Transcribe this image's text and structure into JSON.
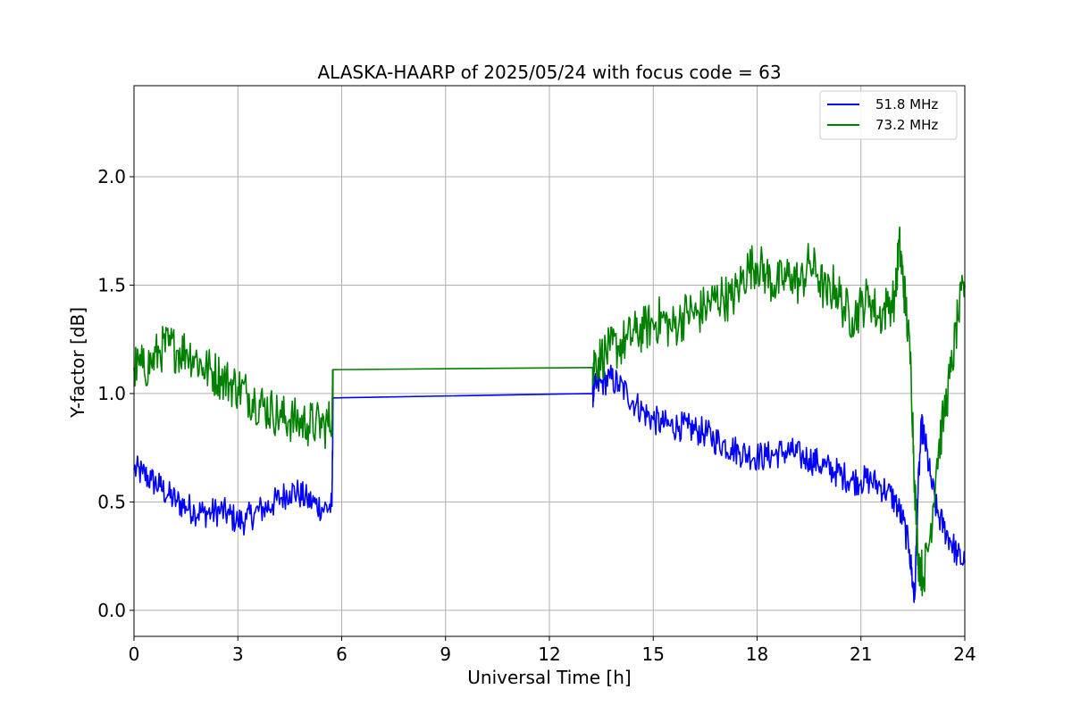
{
  "chart_data": {
    "type": "line",
    "title": "ALASKA-HAARP of 2025/05/24 with focus code = 63",
    "xlabel": "Universal Time [h]",
    "ylabel": "Y-factor [dB]",
    "xlim": [
      0,
      24
    ],
    "ylim": [
      -0.12,
      2.42
    ],
    "xticks": [
      0,
      3,
      6,
      9,
      12,
      15,
      18,
      21,
      24
    ],
    "yticks": [
      0.0,
      0.5,
      1.0,
      1.5,
      2.0
    ],
    "xtick_labels": [
      "0",
      "3",
      "6",
      "9",
      "12",
      "15",
      "18",
      "21",
      "24"
    ],
    "ytick_labels": [
      "0.0",
      "0.5",
      "1.0",
      "1.5",
      "2.0"
    ],
    "grid": true,
    "legend_position": "top-right",
    "series": [
      {
        "name": "51.8 MHz",
        "color": "#0000ff",
        "points": [
          [
            0.0,
            0.65
          ],
          [
            0.25,
            0.63
          ],
          [
            0.5,
            0.6
          ],
          [
            0.75,
            0.57
          ],
          [
            1.0,
            0.53
          ],
          [
            1.25,
            0.5
          ],
          [
            1.5,
            0.48
          ],
          [
            1.75,
            0.46
          ],
          [
            2.0,
            0.45
          ],
          [
            2.25,
            0.45
          ],
          [
            2.5,
            0.46
          ],
          [
            2.75,
            0.44
          ],
          [
            3.0,
            0.41
          ],
          [
            3.25,
            0.42
          ],
          [
            3.5,
            0.45
          ],
          [
            3.75,
            0.47
          ],
          [
            4.0,
            0.49
          ],
          [
            4.25,
            0.52
          ],
          [
            4.5,
            0.55
          ],
          [
            4.75,
            0.54
          ],
          [
            5.0,
            0.51
          ],
          [
            5.25,
            0.49
          ],
          [
            5.5,
            0.47
          ],
          [
            5.72,
            0.48
          ],
          [
            5.75,
            0.98
          ],
          [
            13.25,
            1.0
          ],
          [
            13.3,
            1.02
          ],
          [
            13.5,
            1.05
          ],
          [
            13.75,
            1.07
          ],
          [
            14.0,
            1.04
          ],
          [
            14.25,
            1.0
          ],
          [
            14.5,
            0.95
          ],
          [
            14.75,
            0.91
          ],
          [
            15.0,
            0.88
          ],
          [
            15.25,
            0.86
          ],
          [
            15.5,
            0.85
          ],
          [
            15.75,
            0.85
          ],
          [
            16.0,
            0.84
          ],
          [
            16.25,
            0.83
          ],
          [
            16.5,
            0.82
          ],
          [
            16.75,
            0.79
          ],
          [
            17.0,
            0.77
          ],
          [
            17.25,
            0.75
          ],
          [
            17.5,
            0.73
          ],
          [
            17.75,
            0.72
          ],
          [
            18.0,
            0.71
          ],
          [
            18.25,
            0.71
          ],
          [
            18.5,
            0.72
          ],
          [
            18.75,
            0.73
          ],
          [
            19.0,
            0.73
          ],
          [
            19.25,
            0.71
          ],
          [
            19.5,
            0.7
          ],
          [
            19.75,
            0.68
          ],
          [
            20.0,
            0.66
          ],
          [
            20.25,
            0.64
          ],
          [
            20.5,
            0.62
          ],
          [
            20.75,
            0.6
          ],
          [
            21.0,
            0.6
          ],
          [
            21.25,
            0.6
          ],
          [
            21.5,
            0.58
          ],
          [
            21.75,
            0.55
          ],
          [
            22.0,
            0.5
          ],
          [
            22.2,
            0.42
          ],
          [
            22.4,
            0.28
          ],
          [
            22.5,
            0.12
          ],
          [
            22.55,
            0.05
          ],
          [
            22.65,
            0.55
          ],
          [
            22.75,
            0.85
          ],
          [
            22.85,
            0.78
          ],
          [
            23.0,
            0.62
          ],
          [
            23.2,
            0.45
          ],
          [
            23.4,
            0.38
          ],
          [
            23.6,
            0.32
          ],
          [
            23.8,
            0.25
          ],
          [
            24.0,
            0.22
          ]
        ]
      },
      {
        "name": "73.2 MHz",
        "color": "#008000",
        "points": [
          [
            0.0,
            1.12
          ],
          [
            0.25,
            1.12
          ],
          [
            0.5,
            1.14
          ],
          [
            0.75,
            1.2
          ],
          [
            1.0,
            1.22
          ],
          [
            1.25,
            1.2
          ],
          [
            1.5,
            1.2
          ],
          [
            1.75,
            1.17
          ],
          [
            2.0,
            1.12
          ],
          [
            2.25,
            1.1
          ],
          [
            2.5,
            1.08
          ],
          [
            2.75,
            1.05
          ],
          [
            3.0,
            1.03
          ],
          [
            3.25,
            1.0
          ],
          [
            3.5,
            0.97
          ],
          [
            3.75,
            0.94
          ],
          [
            4.0,
            0.92
          ],
          [
            4.25,
            0.89
          ],
          [
            4.5,
            0.88
          ],
          [
            4.75,
            0.87
          ],
          [
            5.0,
            0.86
          ],
          [
            5.25,
            0.86
          ],
          [
            5.5,
            0.85
          ],
          [
            5.72,
            0.88
          ],
          [
            5.75,
            1.11
          ],
          [
            13.25,
            1.12
          ],
          [
            13.3,
            1.15
          ],
          [
            13.5,
            1.17
          ],
          [
            13.75,
            1.2
          ],
          [
            14.0,
            1.22
          ],
          [
            14.25,
            1.25
          ],
          [
            14.5,
            1.28
          ],
          [
            14.75,
            1.3
          ],
          [
            15.0,
            1.32
          ],
          [
            15.25,
            1.35
          ],
          [
            15.5,
            1.3
          ],
          [
            15.75,
            1.33
          ],
          [
            16.0,
            1.38
          ],
          [
            16.25,
            1.36
          ],
          [
            16.5,
            1.4
          ],
          [
            16.75,
            1.43
          ],
          [
            17.0,
            1.45
          ],
          [
            17.25,
            1.43
          ],
          [
            17.5,
            1.5
          ],
          [
            17.75,
            1.58
          ],
          [
            18.0,
            1.6
          ],
          [
            18.25,
            1.55
          ],
          [
            18.5,
            1.5
          ],
          [
            18.75,
            1.52
          ],
          [
            19.0,
            1.55
          ],
          [
            19.25,
            1.5
          ],
          [
            19.5,
            1.6
          ],
          [
            19.75,
            1.55
          ],
          [
            20.0,
            1.45
          ],
          [
            20.25,
            1.5
          ],
          [
            20.5,
            1.4
          ],
          [
            20.75,
            1.35
          ],
          [
            21.0,
            1.4
          ],
          [
            21.25,
            1.45
          ],
          [
            21.5,
            1.35
          ],
          [
            21.75,
            1.4
          ],
          [
            22.0,
            1.45
          ],
          [
            22.1,
            1.7
          ],
          [
            22.2,
            1.55
          ],
          [
            22.3,
            1.4
          ],
          [
            22.45,
            1.1
          ],
          [
            22.55,
            0.6
          ],
          [
            22.65,
            0.25
          ],
          [
            22.8,
            0.15
          ],
          [
            23.0,
            0.35
          ],
          [
            23.2,
            0.7
          ],
          [
            23.4,
            0.9
          ],
          [
            23.6,
            1.1
          ],
          [
            23.8,
            1.35
          ],
          [
            24.0,
            1.5
          ]
        ]
      }
    ]
  }
}
